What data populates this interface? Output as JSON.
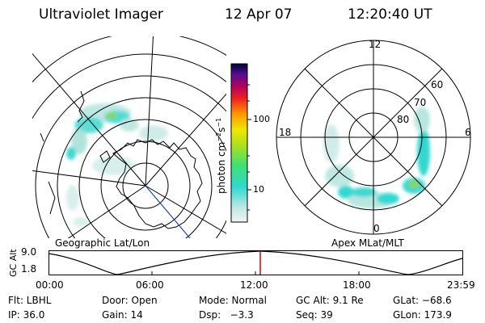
{
  "header": {
    "title": "Ultraviolet Imager",
    "date": "12 Apr 07",
    "time": "12:20:40 UT"
  },
  "geo_map": {
    "caption": "Geographic Lat/Lon"
  },
  "polar_plot": {
    "caption": "Apex MLat/MLT",
    "mlt_labels": [
      "12",
      "18",
      "6",
      "0"
    ],
    "lat_labels": [
      "60",
      "70",
      "80"
    ]
  },
  "colorbar": {
    "unit_base": "photon cm",
    "unit_exp1": "−2",
    "unit_mid": "s",
    "unit_exp2": "−1",
    "ticks": [
      "100",
      "10"
    ]
  },
  "altitude_plot": {
    "ylabel": "GC Alt",
    "yticks": [
      "9.0",
      "1.8"
    ],
    "xticks": [
      "00:00",
      "06:00",
      "12:00",
      "18:00",
      "23:59"
    ],
    "marker_color": "#dd0000"
  },
  "info": {
    "filter": "Flt: LBHL",
    "door": "Door: Open",
    "mode": "Mode: Normal",
    "gc_alt": "GC Alt: 9.1 Re",
    "glat": "GLat: −68.6",
    "ip": "IP: 36.0",
    "gain": "Gain: 14",
    "dsp": "Dsp:   −3.3",
    "seq": "Seq: 39",
    "glon": "GLon: 173.9"
  }
}
